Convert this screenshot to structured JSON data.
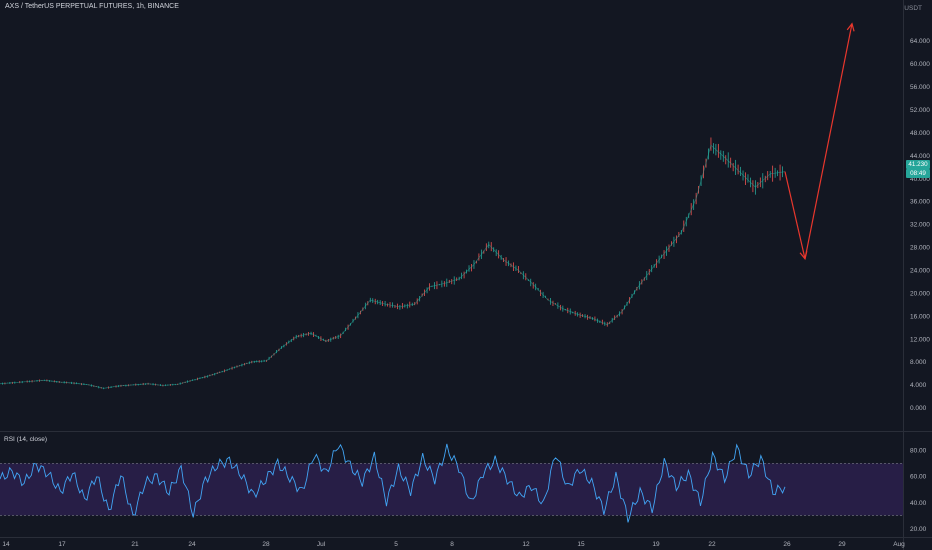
{
  "header": {
    "symbol_title": "AXS / TetherUS PERPETUAL FUTURES, 1h, BINANCE",
    "currency": "USDT"
  },
  "price_badges": {
    "last_price": "41.230",
    "countdown": "08:49"
  },
  "rsi_pane": {
    "label": "RSI (14, close)"
  },
  "colors": {
    "background": "#131722",
    "up": "#26a69a",
    "down": "#ef5350",
    "rsi_line": "#42a5f5",
    "rsi_band": "#2a1f4a",
    "forecast_arrow": "#e8372d"
  },
  "chart_data": [
    {
      "type": "line",
      "title": "AXS / TetherUS PERPETUAL FUTURES, 1h, BINANCE",
      "ylabel": "USDT",
      "y_ticks": [
        "0.000",
        "4.000",
        "8.000",
        "12.000",
        "16.000",
        "20.000",
        "24.000",
        "28.000",
        "32.000",
        "36.000",
        "40.000",
        "44.000",
        "48.000",
        "52.000",
        "56.000",
        "60.000",
        "64.000"
      ],
      "x_ticks": [
        "14",
        "17",
        "21",
        "24",
        "28",
        "Jul",
        "5",
        "8",
        "12",
        "15",
        "19",
        "22",
        "26",
        "29",
        "Aug"
      ],
      "ylim": [
        -3,
        68
      ],
      "grid": false,
      "series": [
        {
          "values": [
            4.2,
            4.4,
            4.6,
            4.8,
            4.5,
            4.3,
            4.0,
            3.4,
            3.8,
            4.0,
            4.2,
            3.9,
            4.1,
            4.8,
            5.5,
            6.3,
            7.2,
            8.0,
            8.2,
            10.5,
            12.4,
            13.0,
            11.6,
            12.6,
            15.6,
            18.8,
            18.1,
            17.6,
            18.1,
            21.1,
            21.7,
            22.5,
            25.0,
            28.5,
            25.8,
            24.0,
            21.5,
            18.8,
            17.3,
            16.3,
            15.6,
            14.5,
            16.8,
            20.8,
            24.2,
            27.4,
            30.6,
            36.5,
            45.8,
            43.5,
            41.0,
            38.5,
            40.8,
            41.2
          ]
        }
      ],
      "forecast_arrow": [
        {
          "x_pos": 0,
          "y": 41.2
        },
        {
          "x_pos": 1,
          "y": 26.0
        },
        {
          "x_pos": 2,
          "y": 67.0
        }
      ]
    },
    {
      "type": "line",
      "title": "RSI (14, close)",
      "y_ticks": [
        "20.00",
        "40.00",
        "60.00",
        "80.00"
      ],
      "ylim": [
        15,
        88
      ],
      "band": [
        30,
        70
      ],
      "series": [
        {
          "values": [
            58,
            64,
            55,
            69,
            62,
            48,
            63,
            42,
            61,
            33,
            62,
            29,
            55,
            60,
            48,
            66,
            31,
            57,
            69,
            72,
            61,
            45,
            58,
            70,
            59,
            48,
            77,
            62,
            85,
            68,
            56,
            75,
            41,
            66,
            49,
            74,
            58,
            81,
            67,
            39,
            63,
            72,
            58,
            44,
            53,
            38,
            78,
            51,
            66,
            55,
            34,
            60,
            28,
            48,
            35,
            71,
            52,
            62,
            40,
            76,
            58,
            82,
            61,
            74,
            48,
            52
          ]
        }
      ]
    }
  ]
}
